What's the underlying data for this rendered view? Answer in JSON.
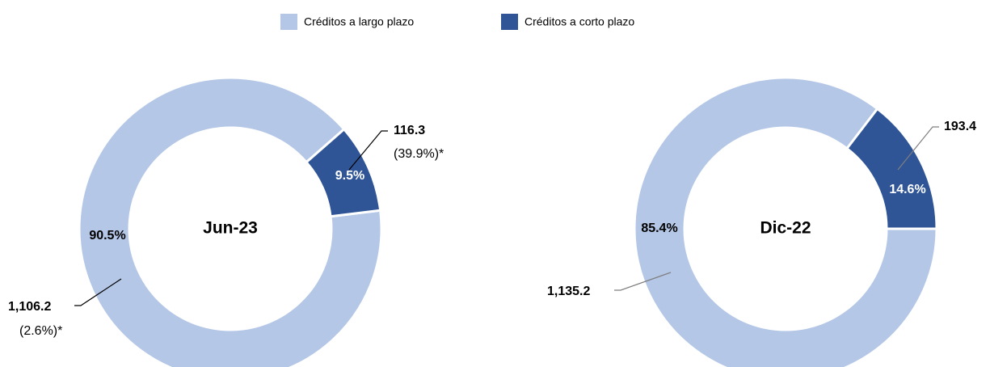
{
  "legend": {
    "labels": [
      "Créditos a largo plazo",
      "Créditos a corto plazo"
    ],
    "colors": [
      "#b4c7e7",
      "#2f5597"
    ]
  },
  "chart_data": [
    {
      "type": "pie",
      "title": "Jun-23",
      "values": [
        90.5,
        9.5
      ],
      "value_labels": [
        "90.5%",
        "9.5%"
      ],
      "amounts": [
        1106.2,
        116.3
      ],
      "amount_labels": [
        "1,106.2",
        "116.3"
      ],
      "changes": [
        "(2.6%)*",
        "(39.9%)*"
      ],
      "colors": [
        "#b4c7e7",
        "#2f5597"
      ]
    },
    {
      "type": "pie",
      "title": "Dic-22",
      "values": [
        85.4,
        14.6
      ],
      "value_labels": [
        "85.4%",
        "14.6%"
      ],
      "amounts": [
        1135.2,
        193.4
      ],
      "amount_labels": [
        "1,135.2",
        "193.4"
      ],
      "colors": [
        "#b4c7e7",
        "#2f5597"
      ]
    }
  ]
}
